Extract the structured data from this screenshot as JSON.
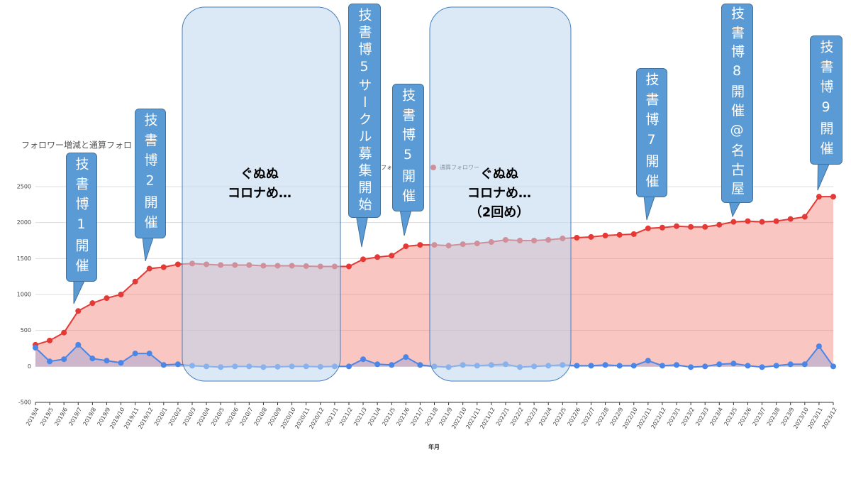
{
  "chart_data": {
    "type": "area-line",
    "title": "フォロワー増減と通算フォロ",
    "xlabel": "年月",
    "categories": [
      "2019/4",
      "2019/5",
      "2019/6",
      "2019/7",
      "2019/8",
      "2019/9",
      "2019/10",
      "2019/11",
      "2019/12",
      "2020/1",
      "2020/2",
      "2020/3",
      "2020/4",
      "2020/5",
      "2020/6",
      "2020/7",
      "2020/8",
      "2020/9",
      "2020/10",
      "2020/11",
      "2020/12",
      "2021/1",
      "2021/2",
      "2021/3",
      "2021/4",
      "2021/5",
      "2021/6",
      "2021/7",
      "2021/8",
      "2021/9",
      "2021/10",
      "2021/11",
      "2021/12",
      "2022/1",
      "2022/2",
      "2022/3",
      "2022/4",
      "2022/5",
      "2022/6",
      "2022/7",
      "2022/8",
      "2022/9",
      "2022/10",
      "2022/11",
      "2022/12",
      "2023/1",
      "2023/2",
      "2023/3",
      "2023/4",
      "2023/5",
      "2023/6",
      "2023/7",
      "2023/8",
      "2023/9",
      "2023/10",
      "2023/11",
      "2023/12"
    ],
    "series": [
      {
        "name": "フォロワー増減",
        "color": "#4a86e8",
        "fill": "rgba(74,134,232,0.25)",
        "values": [
          260,
          70,
          100,
          300,
          110,
          80,
          50,
          180,
          180,
          20,
          30,
          10,
          0,
          -10,
          0,
          0,
          -10,
          -5,
          0,
          0,
          -5,
          0,
          0,
          100,
          30,
          20,
          130,
          20,
          0,
          -10,
          20,
          10,
          20,
          30,
          -10,
          0,
          10,
          20,
          10,
          10,
          20,
          10,
          10,
          80,
          10,
          20,
          -10,
          0,
          30,
          40,
          10,
          -10,
          10,
          30,
          30,
          280,
          0
        ]
      },
      {
        "name": "通算フォロワー",
        "color": "#e53935",
        "fill": "rgba(240,120,110,0.42)",
        "values": [
          300,
          360,
          470,
          770,
          880,
          950,
          1000,
          1180,
          1360,
          1380,
          1420,
          1430,
          1420,
          1410,
          1410,
          1410,
          1400,
          1400,
          1400,
          1395,
          1390,
          1390,
          1390,
          1490,
          1520,
          1540,
          1670,
          1690,
          1690,
          1680,
          1700,
          1710,
          1730,
          1760,
          1750,
          1750,
          1760,
          1780,
          1790,
          1800,
          1820,
          1830,
          1840,
          1920,
          1930,
          1950,
          1940,
          1940,
          1970,
          2010,
          2020,
          2010,
          2020,
          2050,
          2080,
          2360,
          2360
        ]
      }
    ],
    "ylim": [
      -500,
      2500
    ],
    "yticks": [
      -500,
      0,
      500,
      1000,
      1500,
      2000,
      2500
    ],
    "grid": true,
    "periods": [
      {
        "lines": [
          "ぐぬぬ",
          "コロナめ…"
        ]
      },
      {
        "lines": [
          "ぐぬぬ",
          "コロナめ…",
          "（2回め）"
        ]
      }
    ],
    "annotations": [
      {
        "text": "技書博1開催"
      },
      {
        "text": "技書博2開催"
      },
      {
        "text": "技書博5サークル募集開始"
      },
      {
        "text": "技書博5開催"
      },
      {
        "text": "技書博7開催"
      },
      {
        "text": "技書博8開催@名古屋"
      },
      {
        "text": "技書博9開催"
      }
    ]
  }
}
